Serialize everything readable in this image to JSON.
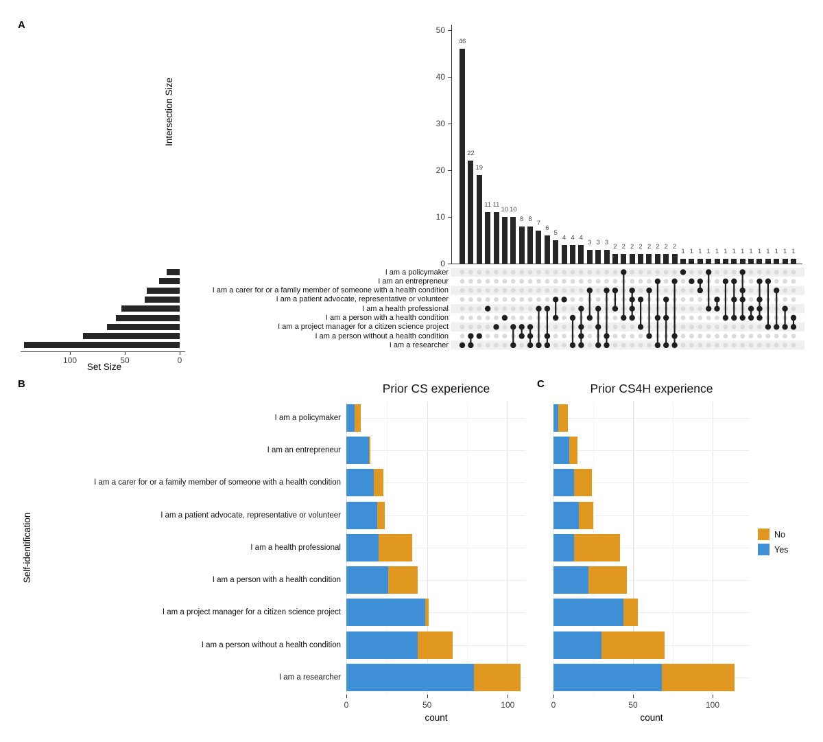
{
  "ui": {
    "panel_a": "A",
    "panel_b": "B",
    "panel_c": "C",
    "self_identification_label": "Self-identification",
    "legend": {
      "no": "No",
      "yes": "Yes"
    }
  },
  "colors": {
    "bar_dark": "#262626",
    "yes_blue": "#3E8FD6",
    "no_orange": "#E19820",
    "matrix_dot_grey": "#DBDBDB",
    "matrix_band_grey": "#F0F0F0",
    "axis_line": "#333333",
    "tick_text": "#3d3d3d",
    "value_label": "#4b4b4b",
    "gridline_major": "#E4E4E4",
    "gridline_minor": "#F2F2F2"
  },
  "chart_data": [
    {
      "id": "upset-intersections",
      "type": "bar",
      "ylabel": "Intersection Size",
      "ylim": [
        0,
        52
      ],
      "yticks": [
        0,
        10,
        20,
        30,
        40,
        50
      ],
      "values": [
        46,
        22,
        19,
        11,
        11,
        10,
        10,
        8,
        8,
        7,
        6,
        5,
        4,
        4,
        4,
        3,
        3,
        3,
        2,
        2,
        2,
        2,
        2,
        2,
        2,
        2,
        1,
        1,
        1,
        1,
        1,
        1,
        1,
        1,
        1,
        1,
        1,
        1,
        1,
        1
      ],
      "set_size_xlabel": "Set Size",
      "set_size_ticks": [
        100,
        50,
        0
      ],
      "sets": [
        {
          "label": "I am a policymaker",
          "size": 12
        },
        {
          "label": "I am an entrepreneur",
          "size": 19
        },
        {
          "label": "I am a carer for or a family member of someone with a health condition",
          "size": 30
        },
        {
          "label": "I am a patient advocate, representative or volunteer",
          "size": 32
        },
        {
          "label": "I am a health professional",
          "size": 53
        },
        {
          "label": "I am a person with a health condition",
          "size": 58
        },
        {
          "label": "I am a project manager for a citizen science project",
          "size": 66
        },
        {
          "label": "I am a person without a health condition",
          "size": 88
        },
        {
          "label": "I am a researcher",
          "size": 142
        }
      ],
      "memberships": [
        [
          9
        ],
        [
          8,
          9
        ],
        [
          8
        ],
        [
          5
        ],
        [
          7
        ],
        [
          6
        ],
        [
          7,
          9
        ],
        [
          7,
          8
        ],
        [
          7,
          8,
          9
        ],
        [
          5,
          9
        ],
        [
          5,
          8,
          9
        ],
        [
          4,
          6
        ],
        [
          4
        ],
        [
          6,
          9
        ],
        [
          5,
          7,
          8,
          9
        ],
        [
          3,
          6
        ],
        [
          5,
          7,
          9
        ],
        [
          3,
          8,
          9
        ],
        [
          3,
          5
        ],
        [
          1,
          6
        ],
        [
          3,
          4,
          5,
          6
        ],
        [
          4,
          7
        ],
        [
          3,
          8
        ],
        [
          2,
          6,
          9
        ],
        [
          4,
          6,
          9
        ],
        [
          2,
          8,
          9
        ],
        [
          1
        ],
        [
          2
        ],
        [
          2,
          3
        ],
        [
          1,
          5
        ],
        [
          4,
          5
        ],
        [
          2,
          6
        ],
        [
          2,
          4,
          6
        ],
        [
          1,
          3,
          4,
          6
        ],
        [
          5,
          6
        ],
        [
          2,
          4,
          5,
          6
        ],
        [
          2,
          7
        ],
        [
          3,
          7
        ],
        [
          5,
          7
        ],
        [
          6,
          7
        ]
      ]
    },
    {
      "id": "prior-cs-experience",
      "type": "bar",
      "orientation": "horizontal-stacked",
      "title": "Prior CS experience",
      "xlabel": "count",
      "xticks": [
        0,
        50,
        100
      ],
      "xlim": [
        0,
        110
      ],
      "categories": [
        "I am a policymaker",
        "I am an entrepreneur",
        "I am a carer for or a family member of someone with a health condition",
        "I am a patient advocate, representative or volunteer",
        "I am a health professional",
        "I am a person with a health condition",
        "I am a project manager for a citizen science project",
        "I am a person without a health condition",
        "I am a researcher"
      ],
      "series": [
        {
          "name": "Yes",
          "color": "#3E8FD6",
          "values": [
            5,
            14,
            17,
            19,
            20,
            26,
            49,
            44,
            79
          ]
        },
        {
          "name": "No",
          "color": "#E19820",
          "values": [
            4,
            1,
            6,
            5,
            21,
            18,
            2,
            22,
            29
          ]
        }
      ]
    },
    {
      "id": "prior-cs4h-experience",
      "type": "bar",
      "orientation": "horizontal-stacked",
      "title": "Prior CS4H experience",
      "xlabel": "count",
      "xticks": [
        0,
        50,
        100
      ],
      "xlim": [
        0,
        123
      ],
      "categories": [
        "I am a policymaker",
        "I am an entrepreneur",
        "I am a carer for or a family member of someone with a health condition",
        "I am a patient advocate, representative or volunteer",
        "I am a health professional",
        "I am a person with a health condition",
        "I am a project manager for a citizen science project",
        "I am a person without a health condition",
        "I am a researcher"
      ],
      "series": [
        {
          "name": "Yes",
          "color": "#3E8FD6",
          "values": [
            3,
            10,
            13,
            16,
            13,
            22,
            44,
            30,
            68
          ]
        },
        {
          "name": "No",
          "color": "#E19820",
          "values": [
            6,
            5,
            11,
            9,
            29,
            24,
            9,
            40,
            46
          ]
        }
      ]
    }
  ]
}
